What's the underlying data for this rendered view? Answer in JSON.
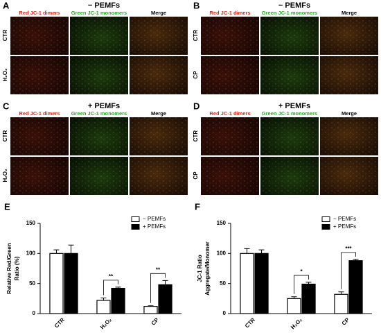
{
  "panels": [
    {
      "letter": "A",
      "title": "− PEMFs",
      "columns": [
        "Red JC-1 dimers",
        "Green JC-1 monomers",
        "Merge"
      ],
      "rows": [
        "CTR",
        "H₂O₂"
      ]
    },
    {
      "letter": "B",
      "title": "− PEMFs",
      "columns": [
        "Red JC-1 dimers",
        "Green JC-1 monomers",
        "Merge"
      ],
      "rows": [
        "CTR",
        "CP"
      ]
    },
    {
      "letter": "C",
      "title": "+ PEMFs",
      "columns": [
        "Red JC-1 dimers",
        "Green JC-1 monomers",
        "Merge"
      ],
      "rows": [
        "CTR",
        "H₂O₂"
      ]
    },
    {
      "letter": "D",
      "title": "+ PEMFs",
      "columns": [
        "Red JC-1 dimers",
        "Green JC-1 monomers",
        "Merge"
      ],
      "rows": [
        "CTR",
        "CP"
      ]
    }
  ],
  "chart_data": [
    {
      "type": "bar",
      "panel": "E",
      "ylabel": [
        "Relative Red/Green",
        "Ratio (%)"
      ],
      "categories": [
        "CTR",
        "H₂O₂",
        "CP"
      ],
      "series": [
        {
          "name": "− PEMFs",
          "color": "#ffffff",
          "values": [
            100,
            22,
            12
          ],
          "errors": [
            6,
            4,
            1
          ]
        },
        {
          "name": "+ PEMFs",
          "color": "#000000",
          "values": [
            100,
            42,
            48
          ],
          "errors": [
            14,
            2,
            7
          ]
        }
      ],
      "significance": [
        null,
        "**",
        "**"
      ],
      "ylim": [
        0,
        150
      ],
      "yticks": [
        0,
        50,
        100,
        150
      ],
      "legend": "upper right"
    },
    {
      "type": "bar",
      "panel": "F",
      "ylabel": [
        "JC-1 Ratio",
        "Aggregate/Monomer"
      ],
      "categories": [
        "CTR",
        "H₂O₂",
        "CP"
      ],
      "series": [
        {
          "name": "− PEMFs",
          "color": "#ffffff",
          "values": [
            100,
            25,
            32
          ],
          "errors": [
            8,
            3,
            4
          ]
        },
        {
          "name": "+ PEMFs",
          "color": "#000000",
          "values": [
            100,
            49,
            88
          ],
          "errors": [
            6,
            3,
            2
          ]
        }
      ],
      "significance": [
        null,
        "*",
        "***"
      ],
      "ylim": [
        0,
        150
      ],
      "yticks": [
        0,
        50,
        100,
        150
      ],
      "legend": "upper right"
    }
  ]
}
